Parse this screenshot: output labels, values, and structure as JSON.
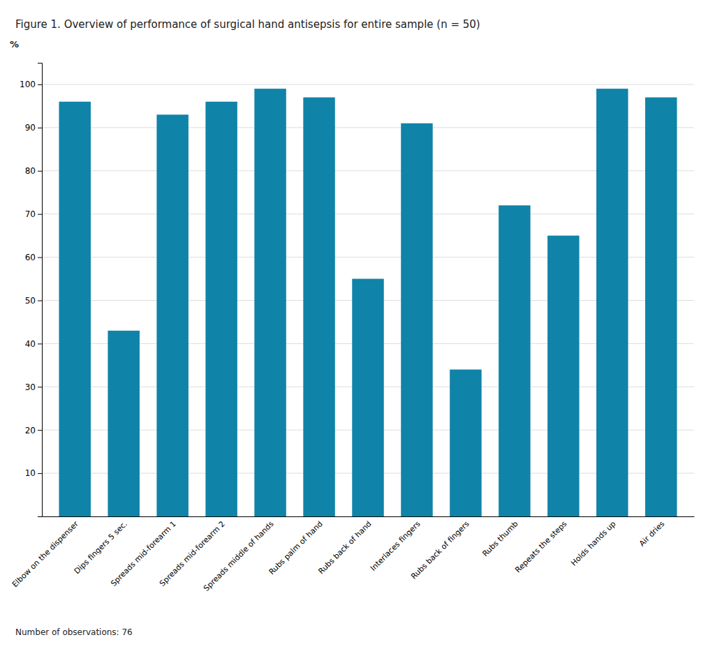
{
  "chart_data": {
    "type": "bar",
    "title": "Figure 1. Overview of performance of surgical hand antisepsis for entire sample (n = 50)",
    "ylabel": "%",
    "annotations": [
      "Number of observations: 76"
    ],
    "categories": [
      "Elbow on the dispenser",
      "Dips fingers 5 sec.",
      "Spreads mid-forearm 1",
      "Spreads mid-forearm 2",
      "Spreads middle of hands",
      "Rubs palm of hand",
      "Rubs back of hand",
      "Interlaces fingers",
      "Rubs back of fingers",
      "Rubs thumb",
      "Repeats the steps",
      "Holds hands up",
      "Air dries"
    ],
    "values": [
      96,
      43,
      93,
      96,
      99,
      97,
      55,
      91,
      34,
      72,
      65,
      99,
      97
    ],
    "color": "#1083a8",
    "ylim": [
      0,
      105
    ],
    "yticks": [
      10,
      20,
      30,
      40,
      50,
      60,
      70,
      80,
      90,
      100
    ],
    "grid": true
  }
}
